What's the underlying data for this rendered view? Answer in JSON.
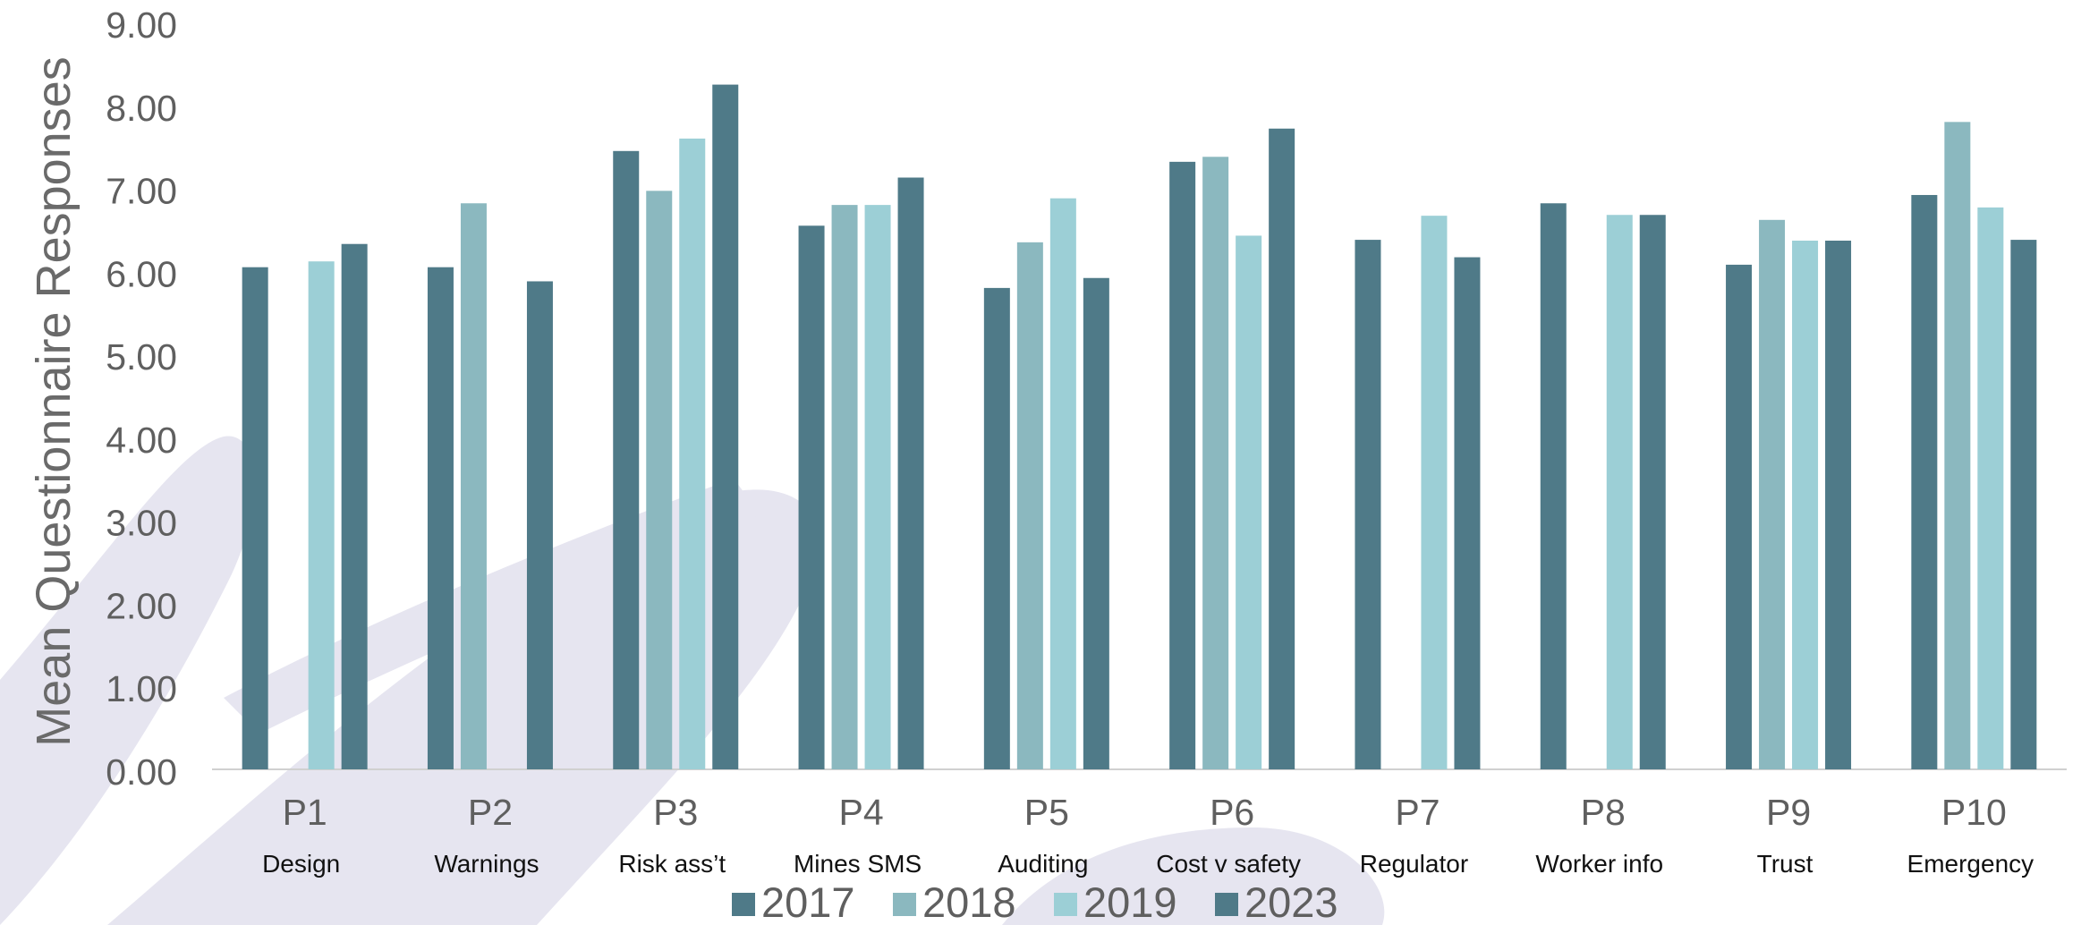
{
  "chart_data": {
    "type": "bar",
    "title": "",
    "xlabel": "",
    "ylabel": "Mean Questionnaire Responses",
    "ylim": [
      0,
      9
    ],
    "yticks": [
      "0.00",
      "1.00",
      "2.00",
      "3.00",
      "4.00",
      "5.00",
      "6.00",
      "7.00",
      "8.00",
      "9.00"
    ],
    "grid": false,
    "legend_position": "bottom",
    "categories": [
      "P1",
      "P2",
      "P3",
      "P4",
      "P5",
      "P6",
      "P7",
      "P8",
      "P9",
      "P10"
    ],
    "category_descriptions": [
      "Design",
      "Warnings",
      "Risk ass’t",
      "Mines SMS",
      "Auditing",
      "Cost v safety",
      "Regulator",
      "Worker info",
      "Trust",
      "Emergency"
    ],
    "series": [
      {
        "name": "2017",
        "color": "#4f7a88",
        "values": [
          6.05,
          6.05,
          7.45,
          6.55,
          5.8,
          7.32,
          6.38,
          6.82,
          6.08,
          6.92
        ]
      },
      {
        "name": "2018",
        "color": "#8bb8bf",
        "values": [
          null,
          6.82,
          6.97,
          6.8,
          6.35,
          7.38,
          null,
          null,
          6.62,
          7.8
        ]
      },
      {
        "name": "2019",
        "color": "#9ccfd6",
        "values": [
          6.12,
          null,
          7.6,
          6.8,
          6.88,
          6.43,
          6.67,
          6.68,
          6.37,
          6.77
        ]
      },
      {
        "name": "2023",
        "color": "#4f7a88",
        "values": [
          6.33,
          5.88,
          8.25,
          7.13,
          5.92,
          7.72,
          6.17,
          6.68,
          6.37,
          6.38
        ]
      }
    ]
  }
}
